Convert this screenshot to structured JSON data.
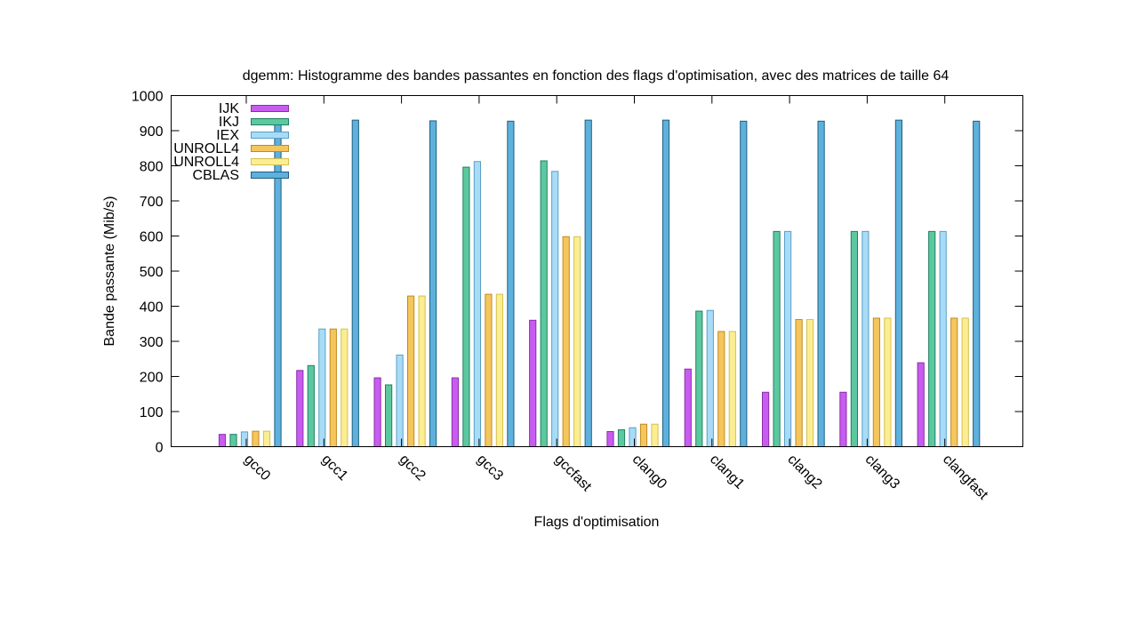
{
  "chart_data": {
    "type": "bar",
    "title": "dgemm: Histogramme des bandes passantes en fonction des flags d'optimisation,  avec des matrices de taille 64",
    "xlabel": "Flags d'optimisation",
    "ylabel": "Bande passante (Mib/s)",
    "ylim": [
      0,
      1000
    ],
    "yticks": [
      "0",
      "100",
      "200",
      "300",
      "400",
      "500",
      "600",
      "700",
      "800",
      "900",
      "1000"
    ],
    "categories": [
      "gcc0",
      "gcc1",
      "gcc2",
      "gcc3",
      "gccfast",
      "clang0",
      "clang1",
      "clang2",
      "clang3",
      "clangfast"
    ],
    "legend_position": "top-left",
    "grid": false,
    "series": [
      {
        "name": "IJK",
        "color": "#c85cf0",
        "values": [
          35,
          217,
          196,
          196,
          360,
          43,
          221,
          155,
          155,
          239
        ]
      },
      {
        "name": "IKJ",
        "color": "#5cc8a0",
        "values": [
          35,
          231,
          176,
          796,
          814,
          48,
          386,
          613,
          613,
          613
        ]
      },
      {
        "name": "IEX",
        "color": "#a8dcf6",
        "values": [
          42,
          335,
          261,
          812,
          784,
          54,
          388,
          613,
          613,
          613
        ]
      },
      {
        "name": "UNROLL4",
        "color": "#f4c65c",
        "values": [
          44,
          335,
          429,
          434,
          598,
          64,
          328,
          362,
          366,
          366
        ]
      },
      {
        "name": "UNROLL4",
        "color": "#fbee92",
        "values": [
          44,
          335,
          429,
          434,
          598,
          64,
          328,
          362,
          366,
          366
        ]
      },
      {
        "name": "CBLAS",
        "color": "#5eb1dc",
        "values": [
          930,
          930,
          928,
          927,
          930,
          930,
          927,
          927,
          930,
          927
        ]
      }
    ]
  }
}
